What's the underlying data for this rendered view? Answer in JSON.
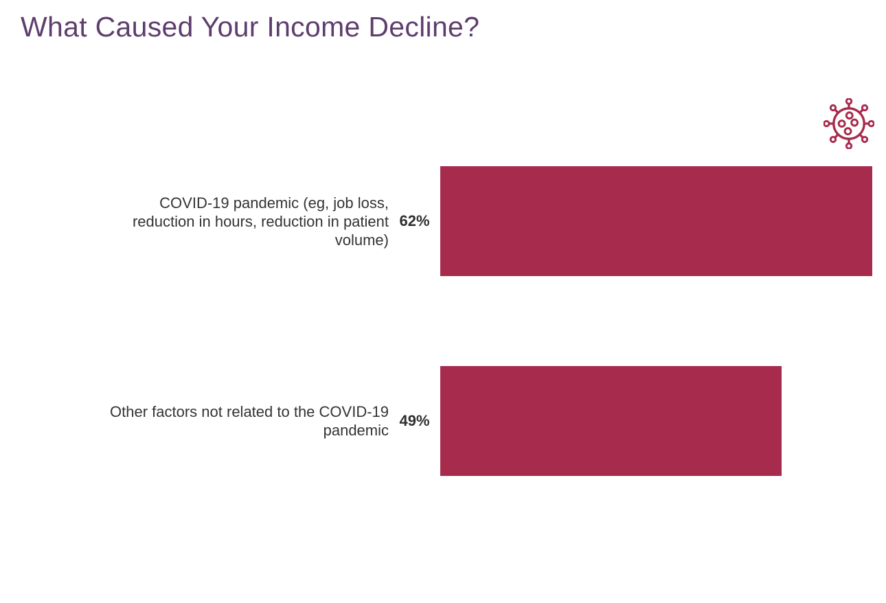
{
  "colors": {
    "background": "#ffffff",
    "title_text": "#5e3d6e",
    "bar_fill": "#a72b4d",
    "label_text": "#333333",
    "value_text": "#2e2e2e",
    "virus_icon": "#a72b4d"
  },
  "icons": {
    "virus": "coronavirus-icon"
  },
  "chart_data": {
    "type": "bar",
    "orientation": "horizontal",
    "title": "What Caused Your Income Decline?",
    "categories": [
      "COVID-19 pandemic (eg, job loss, reduction in hours, reduction in patient volume)",
      "Other factors not related to the COVID-19 pandemic"
    ],
    "values": [
      62,
      49
    ],
    "value_labels": [
      "62%",
      "49%"
    ],
    "value_suffix": "%",
    "xlabel": "",
    "ylabel": "",
    "xlim": [
      0,
      62
    ],
    "grid": false,
    "legend": false,
    "bar_color": "#a72b4d"
  }
}
